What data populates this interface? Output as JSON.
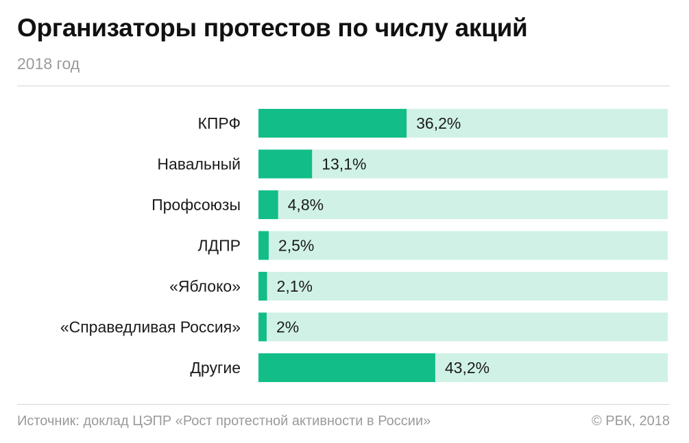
{
  "header": {
    "title": "Организаторы протестов по числу акций",
    "subtitle": "2018 год"
  },
  "footer": {
    "source": "Источник: доклад ЦЭПР «Рост протестной активности в России»",
    "copyright": "© РБК, 2018"
  },
  "colors": {
    "bar": "#12bd88",
    "track": "#d0f2e6"
  },
  "chart_data": {
    "type": "bar",
    "orientation": "horizontal",
    "title": "Организаторы протестов по числу акций",
    "subtitle": "2018 год",
    "categories": [
      "КПРФ",
      "Навальный",
      "Профсоюзы",
      "ЛДПР",
      "«Яблоко»",
      "«Справедливая Россия»",
      "Другие"
    ],
    "values": [
      36.2,
      13.1,
      4.8,
      2.5,
      2.1,
      2,
      43.2
    ],
    "value_labels": [
      "36,2%",
      "13,1%",
      "4,8%",
      "2,5%",
      "2,1%",
      "2%",
      "43,2%"
    ],
    "unit": "%",
    "xlim": [
      0,
      100
    ],
    "grid": false,
    "legend": "none"
  }
}
